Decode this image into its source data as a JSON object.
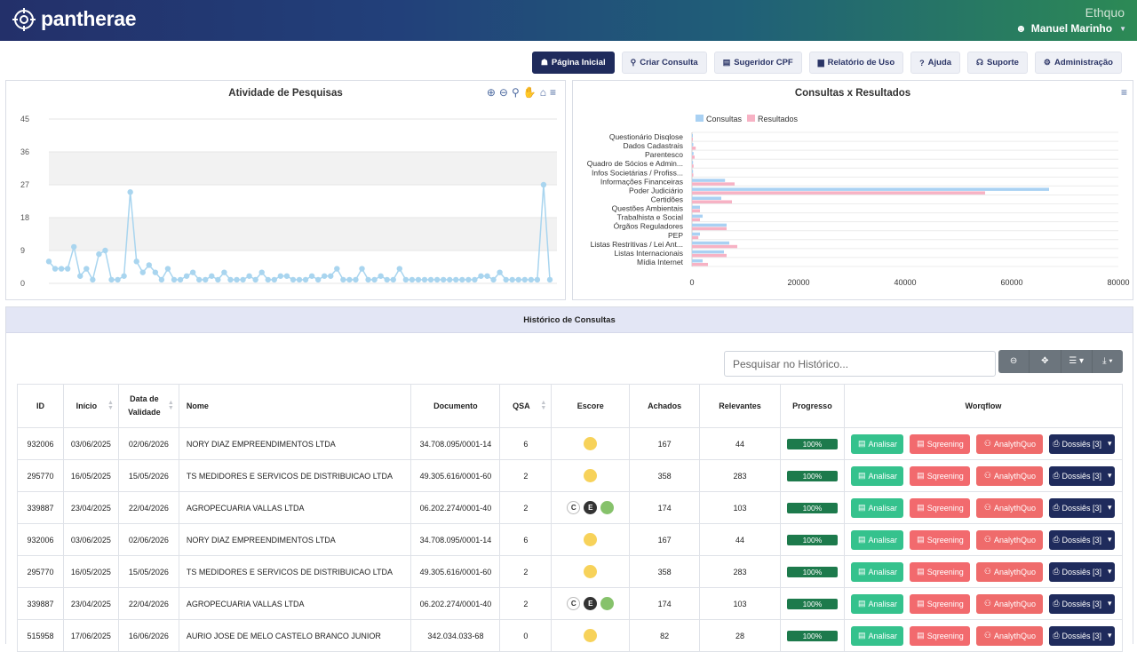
{
  "header": {
    "brand": "pantherae",
    "org": "Ethquo",
    "user": "Manuel Marinho"
  },
  "nav": [
    {
      "label": "Página Inicial",
      "icon": "home-icon",
      "glyph": "☗",
      "active": true
    },
    {
      "label": "Criar Consulta",
      "icon": "search-icon",
      "glyph": "⚲",
      "active": false
    },
    {
      "label": "Sugeridor CPF",
      "icon": "list-icon",
      "glyph": "▤",
      "active": false
    },
    {
      "label": "Relatório de Uso",
      "icon": "report-icon",
      "glyph": "▆",
      "active": false
    },
    {
      "label": "Ajuda",
      "icon": "help-icon",
      "glyph": "?",
      "active": false
    },
    {
      "label": "Suporte",
      "icon": "headset-icon",
      "glyph": "☊",
      "active": false
    },
    {
      "label": "Administração",
      "icon": "users-cog-icon",
      "glyph": "⚙",
      "active": false
    }
  ],
  "chart1": {
    "title": "Atividade de Pesquisas"
  },
  "chart2": {
    "title": "Consultas x Resultados",
    "menu_icon": "≡"
  },
  "chart_data": [
    {
      "type": "line",
      "title": "Atividade de Pesquisas",
      "ylim": [
        0,
        45
      ],
      "yticks": [
        0,
        9,
        18,
        27,
        36,
        45
      ],
      "color": "#a9d5ef",
      "grid": "bands",
      "values": [
        6,
        4,
        4,
        4,
        10,
        2,
        4,
        1,
        8,
        9,
        1,
        1,
        2,
        25,
        6,
        3,
        5,
        3,
        1,
        4,
        1,
        1,
        2,
        3,
        1,
        1,
        2,
        1,
        3,
        1,
        1,
        1,
        2,
        1,
        3,
        1,
        1,
        2,
        2,
        1,
        1,
        1,
        2,
        1,
        2,
        2,
        4,
        1,
        1,
        1,
        4,
        1,
        1,
        2,
        1,
        1,
        4,
        1,
        1,
        1,
        1,
        1,
        1,
        1,
        1,
        1,
        1,
        1,
        1,
        2,
        2,
        1,
        3,
        1,
        1,
        1,
        1,
        1,
        1,
        27,
        1
      ]
    },
    {
      "type": "bar",
      "orientation": "horizontal",
      "title": "Consultas x Resultados",
      "xlim": [
        0,
        80000
      ],
      "xticks": [
        0,
        20000,
        40000,
        60000,
        80000
      ],
      "legend": "top",
      "categories": [
        "Questionário Disqlose",
        "Dados Cadastrais",
        "Parentesco",
        "Quadro de Sócios e Admin...",
        "Infos Societárias / Profiss...",
        "Informações Financeiras",
        "Poder Judiciário",
        "Certidões",
        "Questões Ambientais",
        "Trabalhista e Social",
        "Órgãos Reguladores",
        "PEP",
        "Listas Restritivas / Lei Ant...",
        "Listas Internacionais",
        "Mídia Internet"
      ],
      "series": [
        {
          "name": "Consultas",
          "color": "#a9d1f3",
          "values": [
            150,
            250,
            300,
            200,
            200,
            6200,
            67000,
            5500,
            1500,
            2000,
            6500,
            1500,
            7000,
            6000,
            2000
          ]
        },
        {
          "name": "Resultados",
          "color": "#f7b2c4",
          "values": [
            100,
            700,
            500,
            300,
            250,
            8000,
            55000,
            7500,
            1500,
            1500,
            6500,
            1200,
            8500,
            6500,
            3000
          ]
        }
      ]
    }
  ],
  "history": {
    "title": "Histórico de Consultas",
    "search_placeholder": "Pesquisar no Histórico...",
    "tools": [
      "⊖",
      "✥",
      "☰ ▾",
      "⤓ ▾"
    ],
    "columns": [
      "ID",
      "Início",
      "Data de Validade",
      "Nome",
      "Documento",
      "QSA",
      "Escore",
      "Achados",
      "Relevantes",
      "Progresso",
      "Worqflow"
    ],
    "buttons": {
      "analisar": "Analisar",
      "sqreening": "Sqreening",
      "analyth": "AnalythQuo",
      "dossies": "Dossiês [3]"
    },
    "rows": [
      {
        "id": "932006",
        "inicio": "03/06/2025",
        "validade": "02/06/2026",
        "nome": "NORY DIAZ EMPREENDIMENTOS LTDA",
        "doc": "34.708.095/0001-14",
        "qsa": "6",
        "escore": "y",
        "achados": "167",
        "relevantes": "44",
        "progresso": "100%"
      },
      {
        "id": "295770",
        "inicio": "16/05/2025",
        "validade": "15/05/2026",
        "nome": "TS MEDIDORES E SERVICOS DE DISTRIBUICAO LTDA",
        "doc": "49.305.616/0001-60",
        "qsa": "2",
        "escore": "y",
        "achados": "358",
        "relevantes": "283",
        "progresso": "100%"
      },
      {
        "id": "339887",
        "inicio": "23/04/2025",
        "validade": "22/04/2026",
        "nome": "AGROPECUARIA VALLAS LTDA",
        "doc": "06.202.274/0001-40",
        "qsa": "2",
        "escore": "ceg",
        "achados": "174",
        "relevantes": "103",
        "progresso": "100%"
      },
      {
        "id": "932006",
        "inicio": "03/06/2025",
        "validade": "02/06/2026",
        "nome": "NORY DIAZ EMPREENDIMENTOS LTDA",
        "doc": "34.708.095/0001-14",
        "qsa": "6",
        "escore": "y",
        "achados": "167",
        "relevantes": "44",
        "progresso": "100%"
      },
      {
        "id": "295770",
        "inicio": "16/05/2025",
        "validade": "15/05/2026",
        "nome": "TS MEDIDORES E SERVICOS DE DISTRIBUICAO LTDA",
        "doc": "49.305.616/0001-60",
        "qsa": "2",
        "escore": "y",
        "achados": "358",
        "relevantes": "283",
        "progresso": "100%"
      },
      {
        "id": "339887",
        "inicio": "23/04/2025",
        "validade": "22/04/2026",
        "nome": "AGROPECUARIA VALLAS LTDA",
        "doc": "06.202.274/0001-40",
        "qsa": "2",
        "escore": "ceg",
        "achados": "174",
        "relevantes": "103",
        "progresso": "100%"
      },
      {
        "id": "515958",
        "inicio": "17/06/2025",
        "validade": "16/06/2026",
        "nome": "AURIO JOSE DE MELO CASTELO BRANCO JUNIOR",
        "doc": "342.034.033-68",
        "qsa": "0",
        "escore": "y",
        "achados": "82",
        "relevantes": "28",
        "progresso": "100%"
      }
    ]
  }
}
